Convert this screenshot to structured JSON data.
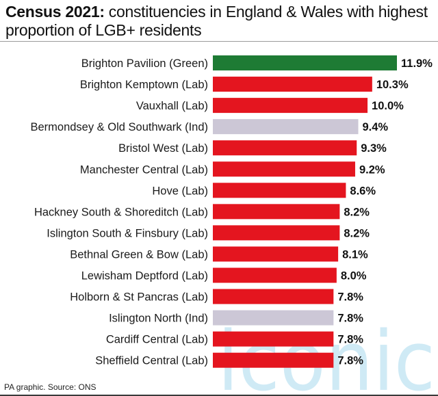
{
  "title_bold": "Census 2021:",
  "title_rest": " constituencies in England & Wales with highest proportion of LGB+ residents",
  "source": "PA graphic. Source: ONS",
  "watermark": "iconic",
  "chart_data": {
    "type": "bar",
    "orientation": "horizontal",
    "title": "Census 2021: constituencies in England & Wales with highest proportion of LGB+ residents",
    "categories": [
      "Brighton Pavilion (Green)",
      "Brighton Kemptown (Lab)",
      "Vauxhall (Lab)",
      "Bermondsey & Old Southwark (Ind)",
      "Bristol West (Lab)",
      "Manchester Central (Lab)",
      "Hove (Lab)",
      "Hackney South & Shoreditch (Lab)",
      "Islington South & Finsbury (Lab)",
      "Bethnal Green & Bow (Lab)",
      "Lewisham Deptford (Lab)",
      "Holborn & St Pancras (Lab)",
      "Islington North (Ind)",
      "Cardiff Central (Lab)",
      "Sheffield Central (Lab)"
    ],
    "values": [
      11.9,
      10.3,
      10.0,
      9.4,
      9.3,
      9.2,
      8.6,
      8.2,
      8.2,
      8.1,
      8.0,
      7.8,
      7.8,
      7.8,
      7.8
    ],
    "value_labels": [
      "11.9%",
      "10.3%",
      "10.0%",
      "9.4%",
      "9.3%",
      "9.2%",
      "8.6%",
      "8.2%",
      "8.2%",
      "8.1%",
      "8.0%",
      "7.8%",
      "7.8%",
      "7.8%",
      "7.8%"
    ],
    "party": [
      "Green",
      "Lab",
      "Lab",
      "Ind",
      "Lab",
      "Lab",
      "Lab",
      "Lab",
      "Lab",
      "Lab",
      "Lab",
      "Lab",
      "Ind",
      "Lab",
      "Lab"
    ],
    "party_colors": {
      "Green": "#1e7b34",
      "Lab": "#e4151f",
      "Ind": "#ccc7d6"
    },
    "xlim": [
      0,
      11.9
    ],
    "grid": false,
    "legend": "none"
  }
}
